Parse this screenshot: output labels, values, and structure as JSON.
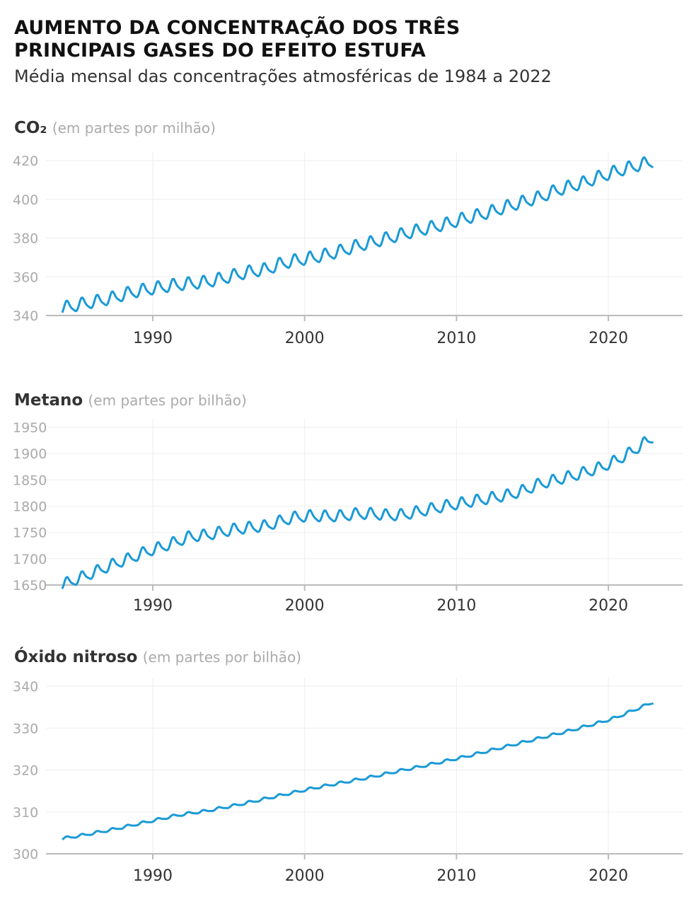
{
  "title": "AUMENTO DA CONCENTRAÇÃO DOS TRÊS PRINCIPAIS GASES DO EFEITO ESTUFA",
  "subtitle": "Média mensal das concentrações atmosféricas de 1984 a 2022",
  "line_color": "#1a9ad6",
  "chart_data": [
    {
      "type": "line",
      "name": "CO₂",
      "unit": "(em partes por milhão)",
      "years": [
        1984,
        1985,
        1986,
        1987,
        1988,
        1989,
        1990,
        1991,
        1992,
        1993,
        1994,
        1995,
        1996,
        1997,
        1998,
        1999,
        2000,
        2001,
        2002,
        2003,
        2004,
        2005,
        2006,
        2007,
        2008,
        2009,
        2010,
        2011,
        2012,
        2013,
        2014,
        2015,
        2016,
        2017,
        2018,
        2019,
        2020,
        2021,
        2022
      ],
      "annual_mean": [
        344.4,
        346.0,
        347.4,
        349.2,
        351.6,
        353.1,
        354.4,
        355.6,
        356.4,
        357.1,
        358.8,
        360.8,
        362.6,
        363.7,
        366.7,
        368.4,
        369.7,
        371.3,
        373.4,
        375.9,
        377.7,
        379.8,
        381.9,
        383.8,
        385.6,
        387.4,
        389.9,
        391.7,
        393.9,
        396.5,
        398.7,
        400.9,
        404.2,
        406.5,
        408.7,
        411.7,
        414.2,
        416.4,
        418.5
      ],
      "seasonal_amplitude": 3,
      "ylim": [
        340,
        420
      ],
      "yticks": [
        340,
        360,
        380,
        400,
        420
      ],
      "xticks": [
        1990,
        2000,
        2010,
        2020
      ],
      "grid": true
    },
    {
      "type": "line",
      "name": "Metano",
      "unit": "(em partes por bilhão)",
      "years": [
        1984,
        1985,
        1986,
        1987,
        1988,
        1989,
        1990,
        1991,
        1992,
        1993,
        1994,
        1995,
        1996,
        1997,
        1998,
        1999,
        2000,
        2001,
        2002,
        2003,
        2004,
        2005,
        2006,
        2007,
        2008,
        2009,
        2010,
        2011,
        2012,
        2013,
        2014,
        2015,
        2016,
        2017,
        2018,
        2019,
        2020,
        2021,
        2022
      ],
      "annual_mean": [
        1655,
        1666,
        1678,
        1690,
        1700,
        1712,
        1721,
        1731,
        1742,
        1744,
        1750,
        1756,
        1759,
        1762,
        1772,
        1779,
        1781,
        1780,
        1781,
        1785,
        1785,
        1782,
        1783,
        1789,
        1795,
        1801,
        1806,
        1811,
        1816,
        1821,
        1830,
        1842,
        1849,
        1856,
        1864,
        1873,
        1886,
        1902,
        1922
      ],
      "seasonal_amplitude": 10,
      "ylim": [
        1650,
        1950
      ],
      "yticks": [
        1650,
        1700,
        1750,
        1800,
        1850,
        1900,
        1950
      ],
      "xticks": [
        1990,
        2000,
        2010,
        2020
      ],
      "grid": true
    },
    {
      "type": "line",
      "name": "Óxido nitroso",
      "unit": "(em partes por bilhão)",
      "years": [
        1984,
        1985,
        1986,
        1987,
        1988,
        1989,
        1990,
        1991,
        1992,
        1993,
        1994,
        1995,
        1996,
        1997,
        1998,
        1999,
        2000,
        2001,
        2002,
        2003,
        2004,
        2005,
        2006,
        2007,
        2008,
        2009,
        2010,
        2011,
        2012,
        2013,
        2014,
        2015,
        2016,
        2017,
        2018,
        2019,
        2020,
        2021,
        2022
      ],
      "annual_mean": [
        303.9,
        304.5,
        305.2,
        305.9,
        306.7,
        307.5,
        308.3,
        309.1,
        309.7,
        310.2,
        310.9,
        311.6,
        312.4,
        313.2,
        314.0,
        314.8,
        315.6,
        316.3,
        317.0,
        317.7,
        318.4,
        319.2,
        320.0,
        320.7,
        321.5,
        322.3,
        323.1,
        324.0,
        324.9,
        325.8,
        326.7,
        327.6,
        328.5,
        329.4,
        330.4,
        331.4,
        332.5,
        334.0,
        335.5
      ],
      "seasonal_amplitude": 0.3,
      "ylim": [
        300,
        340
      ],
      "yticks": [
        300,
        310,
        320,
        330,
        340
      ],
      "xticks": [
        1990,
        2000,
        2010,
        2020
      ],
      "grid": true
    }
  ]
}
